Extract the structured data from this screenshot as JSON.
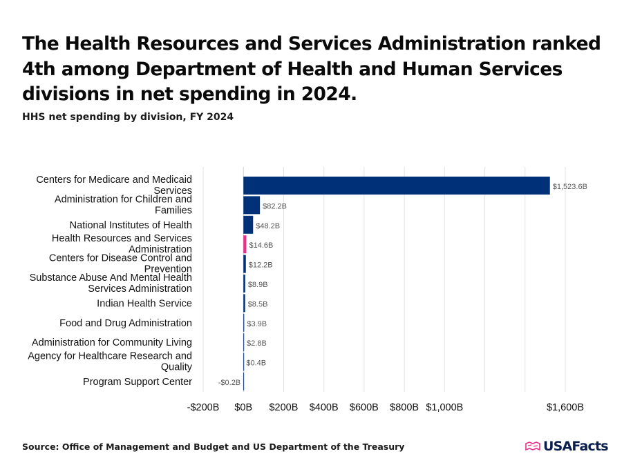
{
  "header": {
    "title": "The Health Resources and Services Administration ranked 4th among Department of Health and Human Services divisions in net spending in 2024.",
    "subtitle": "HHS net spending by division, FY 2024"
  },
  "footer": {
    "source": "Source: Office of Management and Budget and US Department of the Treasury",
    "brand": "USAFacts",
    "logo_icon": "usafacts-flag-icon"
  },
  "colors": {
    "primary_bar": "#003178",
    "highlight_bar": "#e8308a",
    "grid": "#e3e3e3",
    "brand": "#0b1f4d"
  },
  "chart_data": {
    "type": "bar",
    "orientation": "horizontal",
    "unit": "billions USD",
    "categories": [
      [
        "Centers for Medicare and Medicaid",
        "Services"
      ],
      [
        "Administration for Children and",
        "Families"
      ],
      [
        "National Institutes of Health"
      ],
      [
        "Health Resources and Services",
        "Administration"
      ],
      [
        "Centers for Disease Control and",
        "Prevention"
      ],
      [
        "Substance Abuse And Mental Health",
        "Services Administration"
      ],
      [
        "Indian Health Service"
      ],
      [
        "Food and Drug Administration"
      ],
      [
        "Administration for Community Living"
      ],
      [
        "Agency for Healthcare Research and",
        "Quality"
      ],
      [
        "Program Support Center"
      ]
    ],
    "values": [
      1523.6,
      82.2,
      48.2,
      14.6,
      12.2,
      8.9,
      8.5,
      3.9,
      2.8,
      0.4,
      -0.2
    ],
    "value_labels": [
      "$1,523.6B",
      "$82.2B",
      "$48.2B",
      "$14.6B",
      "$12.2B",
      "$8.9B",
      "$8.5B",
      "$3.9B",
      "$2.8B",
      "$0.4B",
      "-$0.2B"
    ],
    "highlight_index": 3,
    "xlim": [
      -200,
      1600
    ],
    "gridlines": [
      -200,
      0,
      200,
      400,
      600,
      800,
      1000,
      1200,
      1400,
      1600
    ],
    "ticks": [
      {
        "value": -200,
        "label": "-$200B"
      },
      {
        "value": 0,
        "label": "$0B"
      },
      {
        "value": 200,
        "label": "$200B"
      },
      {
        "value": 400,
        "label": "$400B"
      },
      {
        "value": 600,
        "label": "$600B"
      },
      {
        "value": 800,
        "label": "$800B"
      },
      {
        "value": 1000,
        "label": "$1,000B"
      },
      {
        "value": 1600,
        "label": "$1,600B"
      }
    ],
    "grid": true,
    "legend": "none"
  }
}
